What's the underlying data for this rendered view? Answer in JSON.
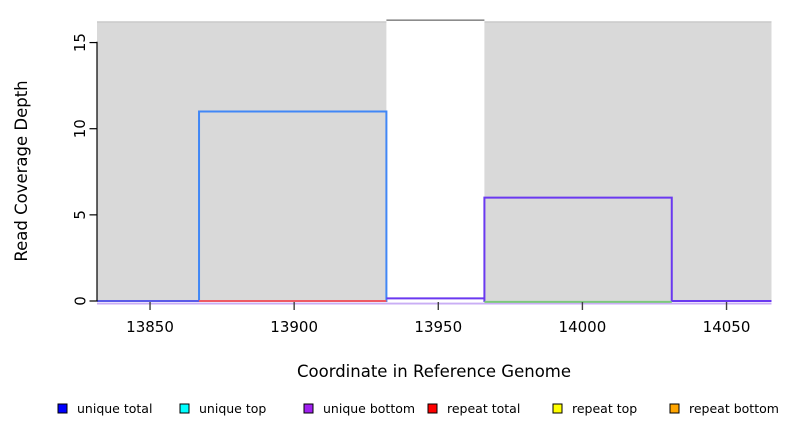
{
  "chart_data": {
    "type": "area",
    "title": "",
    "xlabel": "Coordinate in Reference Genome",
    "ylabel": "Read Coverage Depth",
    "xlim": [
      13831.6,
      14065.6
    ],
    "ylim": [
      0,
      16.6
    ],
    "xticks": [
      "13850",
      "13900",
      "13950",
      "14000",
      "14050"
    ],
    "yticks": [
      "0",
      "5",
      "10",
      "15"
    ],
    "grid": false,
    "background": {
      "masked_regions": [
        {
          "x1": 13831.6,
          "x2": 13932,
          "y1": 0,
          "y2": 16.2,
          "fill": "#d9d9d9",
          "top_edge": "#bdbdbd"
        },
        {
          "x1": 13966,
          "x2": 14065.6,
          "y1": 0,
          "y2": 16.2,
          "fill": "#d9d9d9",
          "top_edge": "#bdbdbd"
        }
      ],
      "gap_top_line": {
        "x1": 13932,
        "x2": 13966,
        "y": 16.3,
        "color": "#8c8c8c"
      }
    },
    "coverage_rects": [
      {
        "name": "unique-coverage-block-left",
        "x1": 13867,
        "x2": 13932,
        "depth": 11,
        "stroke": "#4187f6"
      },
      {
        "name": "unique-coverage-block-right",
        "x1": 13966,
        "x2": 14031,
        "depth": 6,
        "stroke": "#6a39f0"
      }
    ],
    "baseline_segments": [
      {
        "x1": 13831.6,
        "x2": 13867,
        "depth": 0,
        "color": "#5a5ae8"
      },
      {
        "x1": 13867,
        "x2": 13932,
        "depth": 0,
        "color": "#ee5a64"
      },
      {
        "x1": 13932,
        "x2": 13966,
        "depth": 0.15,
        "color": "#6a39f0"
      },
      {
        "x1": 13966,
        "x2": 14031,
        "depth": -0.05,
        "color": "#7cc87c"
      },
      {
        "x1": 14031,
        "x2": 14065.6,
        "depth": 0,
        "color": "#6a39f0"
      }
    ],
    "baseline_underline": {
      "x1": 13831.6,
      "x2": 14065.6,
      "depth": -0.15,
      "color": "#c9aef5"
    },
    "legend": {
      "position": "bottom",
      "items": [
        {
          "label": "unique total",
          "color": "#0000ff"
        },
        {
          "label": "unique top",
          "color": "#00ffff"
        },
        {
          "label": "unique bottom",
          "color": "#a020f0"
        },
        {
          "label": "repeat total",
          "color": "#ff0000"
        },
        {
          "label": "repeat top",
          "color": "#ffff00"
        },
        {
          "label": "repeat bottom",
          "color": "#ffa500"
        }
      ]
    }
  }
}
